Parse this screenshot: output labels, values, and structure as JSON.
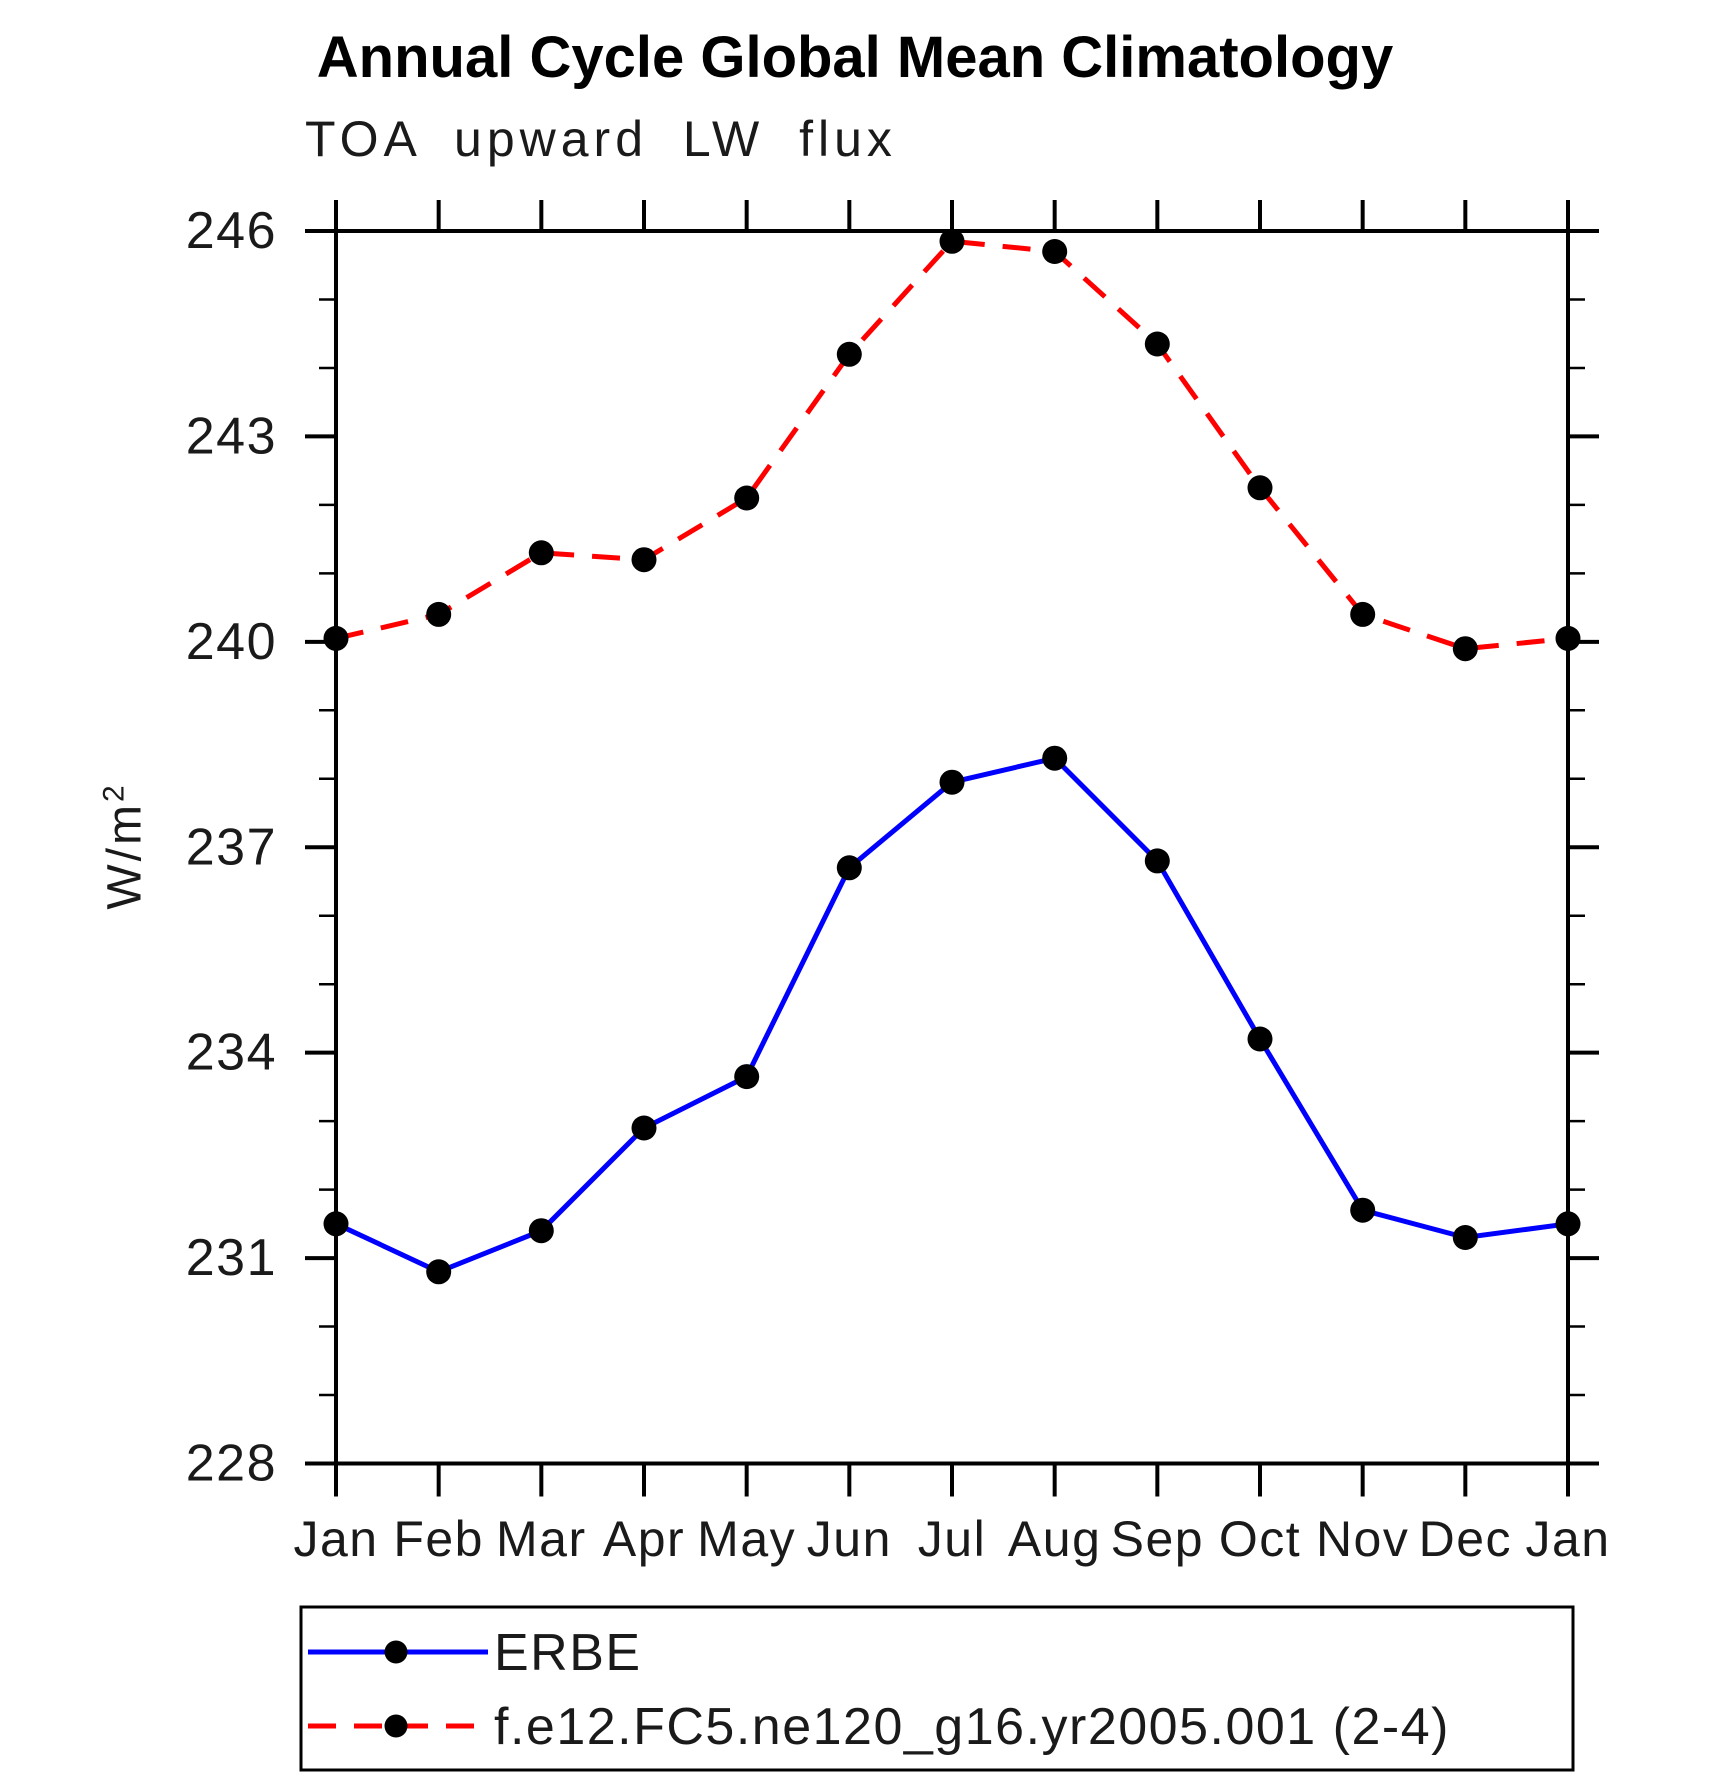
{
  "chart_data": {
    "type": "line",
    "title": "Annual Cycle Global Mean Climatology",
    "subtitle": "TOA upward LW flux",
    "ylabel": "W/m",
    "ylabel_exponent": "2",
    "x_tick_labels": [
      "Jan",
      "Feb",
      "Mar",
      "Apr",
      "May",
      "Jun",
      "Jul",
      "Aug",
      "Sep",
      "Oct",
      "Nov",
      "Dec",
      "Jan"
    ],
    "y_ticks": [
      228,
      231,
      234,
      237,
      240,
      243,
      246
    ],
    "y_minor_step": 1,
    "ylim": [
      228,
      246
    ],
    "grid": false,
    "legend_position": "bottom",
    "series": [
      {
        "name": "ERBE",
        "color": "#0000ff",
        "style": "solid",
        "marker": "circle",
        "marker_color": "#000000",
        "values": [
          231.5,
          230.8,
          231.4,
          232.9,
          233.65,
          236.7,
          237.95,
          238.3,
          236.8,
          234.2,
          231.7,
          231.3,
          231.5
        ]
      },
      {
        "name": "f.e12.FC5.ne120_g16.yr2005.001 (2-4)",
        "color": "#ff0000",
        "style": "dashed",
        "marker": "circle",
        "marker_color": "#000000",
        "values": [
          240.05,
          240.4,
          241.3,
          241.2,
          242.1,
          244.2,
          245.85,
          245.7,
          244.35,
          242.25,
          240.4,
          239.9,
          240.05
        ]
      }
    ]
  }
}
